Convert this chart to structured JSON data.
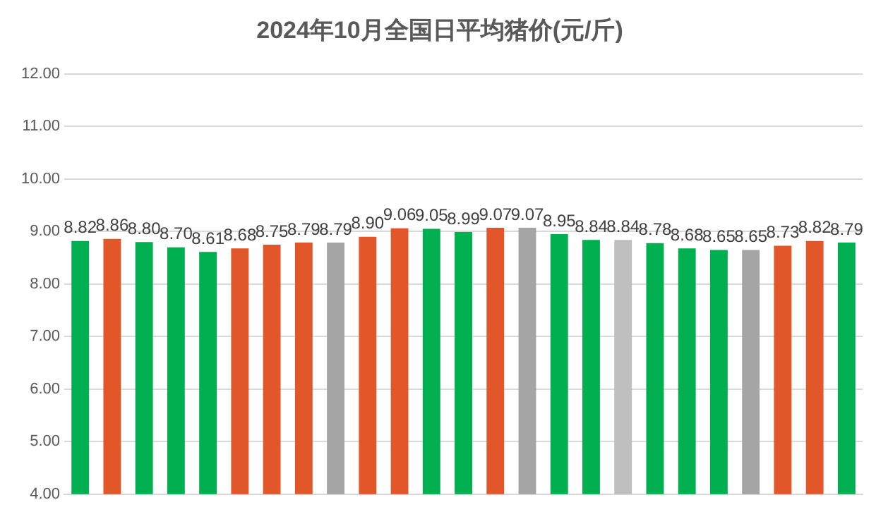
{
  "chart_data": {
    "type": "bar",
    "title": "2024年10月全国日平均猪价(元/斤)",
    "categories": [
      null,
      null,
      null,
      null,
      null,
      null,
      null,
      null,
      null,
      null,
      null,
      null,
      null,
      null,
      null,
      null,
      null,
      null,
      null,
      null,
      null,
      null,
      null,
      null,
      null
    ],
    "values": [
      8.82,
      8.86,
      8.8,
      8.7,
      8.61,
      8.68,
      8.75,
      8.79,
      8.79,
      8.9,
      9.06,
      9.05,
      8.99,
      9.07,
      9.07,
      8.95,
      8.84,
      8.84,
      8.78,
      8.68,
      8.65,
      8.65,
      8.73,
      8.82,
      8.79
    ],
    "value_labels": [
      "8.82",
      "8.86",
      "8.80",
      "8.70",
      "8.61",
      "8.68",
      "8.75",
      "8.79",
      "8.79",
      "8.90",
      "9.06",
      "9.05",
      "8.99",
      "9.07",
      "9.07",
      "8.95",
      "8.84",
      "8.84",
      "8.78",
      "8.68",
      "8.65",
      "8.65",
      "8.73",
      "8.82",
      "8.79"
    ],
    "colors": [
      "#00b050",
      "#e2572a",
      "#00b050",
      "#00b050",
      "#00b050",
      "#e2572a",
      "#e2572a",
      "#e2572a",
      "#a5a5a5",
      "#e2572a",
      "#e2572a",
      "#00b050",
      "#00b050",
      "#e2572a",
      "#a5a5a5",
      "#00b050",
      "#00b050",
      "#bfbfbf",
      "#00b050",
      "#00b050",
      "#00b050",
      "#a5a5a5",
      "#e2572a",
      "#e2572a",
      "#00b050"
    ],
    "ylim": [
      4,
      12
    ],
    "yticks": [
      {
        "value": 4,
        "label": "4.00"
      },
      {
        "value": 5,
        "label": "5.00"
      },
      {
        "value": 6,
        "label": "6.00"
      },
      {
        "value": 7,
        "label": "7.00"
      },
      {
        "value": 8,
        "label": "8.00"
      },
      {
        "value": 9,
        "label": "9.00"
      },
      {
        "value": 10,
        "label": "10.00"
      },
      {
        "value": 11,
        "label": "11.00"
      },
      {
        "value": 12,
        "label": "12.00"
      }
    ],
    "grid": "y",
    "legend": false
  }
}
